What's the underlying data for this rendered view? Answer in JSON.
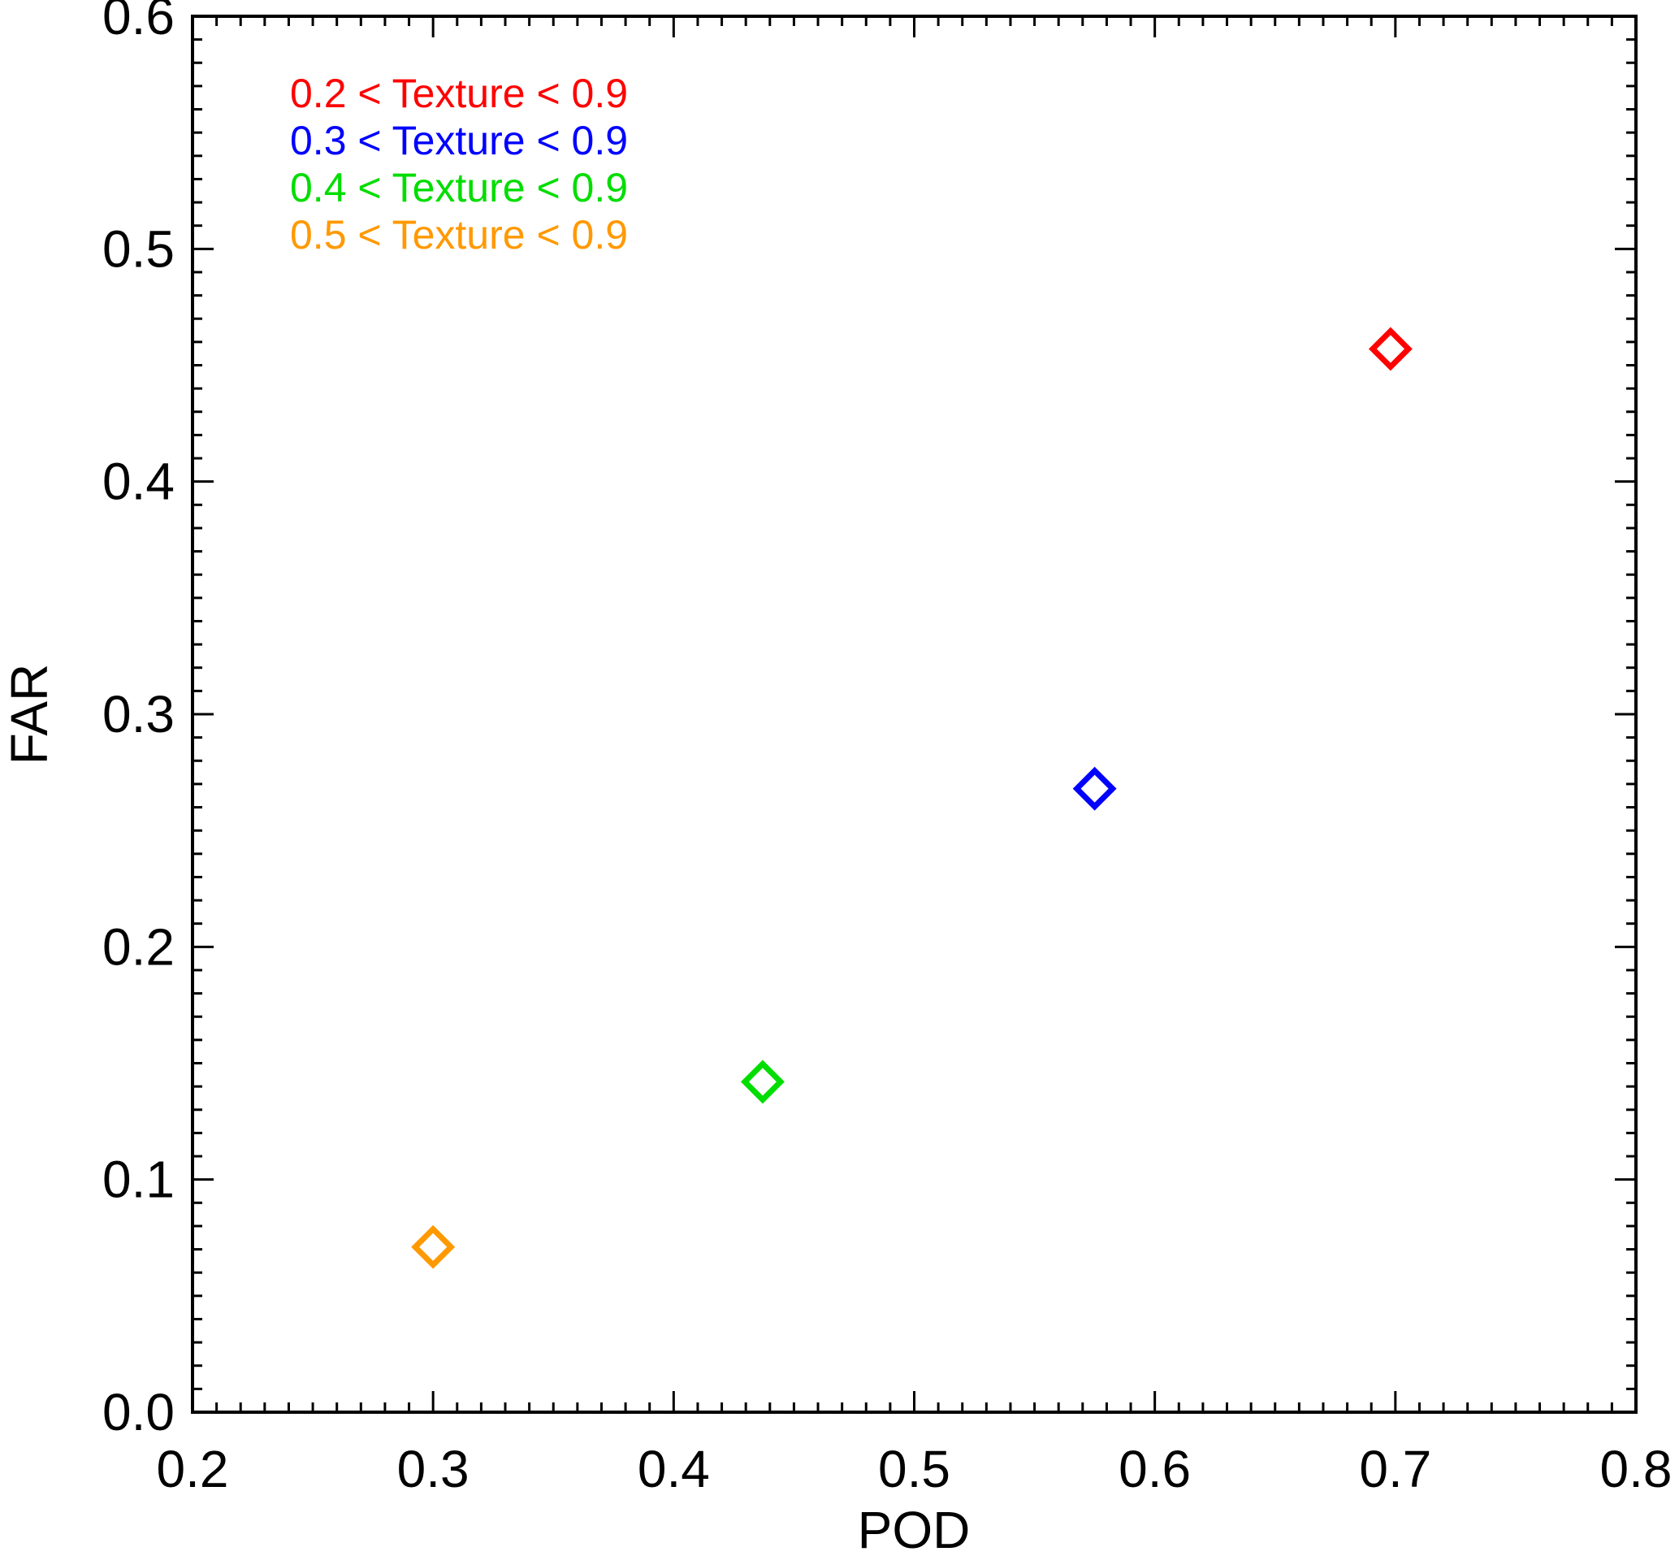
{
  "chart_data": {
    "type": "scatter",
    "title": "",
    "xlabel": "POD",
    "ylabel": "FAR",
    "xlim": [
      0.2,
      0.8
    ],
    "ylim": [
      0.0,
      0.6
    ],
    "xticks": [
      "0.2",
      "0.3",
      "0.4",
      "0.5",
      "0.6",
      "0.7",
      "0.8"
    ],
    "yticks": [
      "0.0",
      "0.1",
      "0.2",
      "0.3",
      "0.4",
      "0.5",
      "0.6"
    ],
    "grid": false,
    "legend_position": "top-left",
    "marker": "open-diamond",
    "series": [
      {
        "name": "0.2 < Texture < 0.9",
        "color": "#ff0000",
        "x": 0.698,
        "y": 0.457
      },
      {
        "name": "0.3 < Texture < 0.9",
        "color": "#0000ff",
        "x": 0.575,
        "y": 0.268
      },
      {
        "name": "0.4 < Texture < 0.9",
        "color": "#00dd00",
        "x": 0.437,
        "y": 0.142
      },
      {
        "name": "0.5 < Texture < 0.9",
        "color": "#ff9900",
        "x": 0.3,
        "y": 0.071
      }
    ]
  }
}
